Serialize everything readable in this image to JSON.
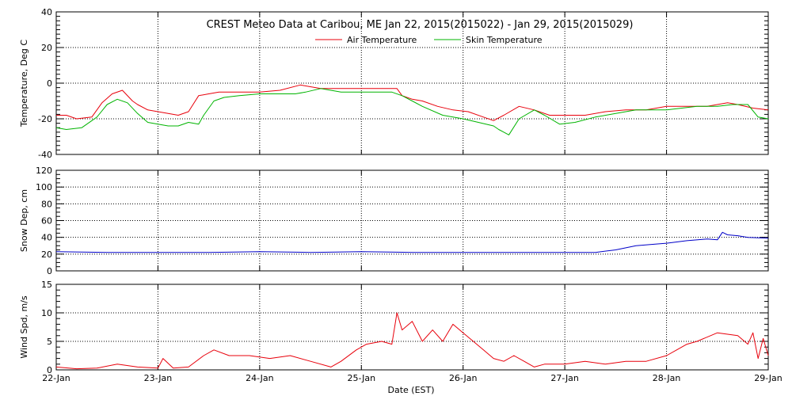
{
  "title": "CREST Meteo Data at Caribou, ME   Jan 22, 2015(2015022) - Jan 29, 2015(2015029)",
  "xlabel": "Date (EST)",
  "x_ticks": [
    "22-Jan",
    "23-Jan",
    "24-Jan",
    "25-Jan",
    "26-Jan",
    "27-Jan",
    "28-Jan",
    "29-Jan"
  ],
  "colors": {
    "air": "#e8000b",
    "skin": "#00b400",
    "snow": "#0000c8",
    "wind": "#e8000b",
    "grid": "#000000"
  },
  "chart_data": [
    {
      "type": "line",
      "title": "CREST Meteo Data at Caribou, ME   Jan 22, 2015(2015022) - Jan 29, 2015(2015029)",
      "xlabel": "",
      "ylabel": "Temperature, Deg C",
      "xlim": [
        0,
        7
      ],
      "ylim": [
        -40,
        40
      ],
      "y_ticks": [
        40,
        20,
        0,
        -20,
        -40
      ],
      "grid": true,
      "legend": "top-center",
      "series": [
        {
          "name": "Air Temperature",
          "color": "#e8000b",
          "x": [
            0,
            0.1,
            0.2,
            0.35,
            0.45,
            0.55,
            0.65,
            0.75,
            0.8,
            0.9,
            1.0,
            1.1,
            1.2,
            1.3,
            1.4,
            1.5,
            1.6,
            1.75,
            2.0,
            2.2,
            2.4,
            2.6,
            2.75,
            2.85,
            3.0,
            3.2,
            3.35,
            3.4,
            3.5,
            3.6,
            3.75,
            3.9,
            4.05,
            4.2,
            4.3,
            4.4,
            4.55,
            4.7,
            4.85,
            5.0,
            5.2,
            5.4,
            5.6,
            5.8,
            6.0,
            6.2,
            6.4,
            6.6,
            6.7,
            6.85,
            7.0
          ],
          "y": [
            -18,
            -18,
            -20,
            -19,
            -11,
            -6,
            -4,
            -10,
            -12,
            -15,
            -16,
            -17,
            -18,
            -16,
            -7,
            -6,
            -5,
            -5,
            -5,
            -4,
            -1,
            -3,
            -3,
            -3,
            -3,
            -3,
            -3,
            -7,
            -9,
            -10,
            -13,
            -15,
            -16,
            -19,
            -21,
            -18,
            -13,
            -15,
            -18,
            -18,
            -18,
            -16,
            -15,
            -15,
            -13,
            -13,
            -13,
            -11,
            -12,
            -14,
            -15
          ]
        },
        {
          "name": "Skin Temperature",
          "color": "#00b400",
          "x": [
            0,
            0.1,
            0.25,
            0.4,
            0.5,
            0.6,
            0.7,
            0.8,
            0.9,
            1.0,
            1.1,
            1.2,
            1.3,
            1.4,
            1.45,
            1.55,
            1.65,
            1.8,
            2.0,
            2.2,
            2.35,
            2.45,
            2.6,
            2.8,
            3.0,
            3.3,
            3.4,
            3.5,
            3.6,
            3.8,
            4.0,
            4.15,
            4.3,
            4.35,
            4.45,
            4.55,
            4.7,
            4.8,
            4.95,
            5.1,
            5.3,
            5.5,
            5.7,
            6.0,
            6.3,
            6.5,
            6.65,
            6.8,
            6.9,
            7.0
          ],
          "y": [
            -25,
            -26,
            -25,
            -19,
            -12,
            -9,
            -11,
            -17,
            -22,
            -23,
            -24,
            -24,
            -22,
            -23,
            -18,
            -10,
            -8,
            -7,
            -6,
            -6,
            -6,
            -5,
            -3,
            -5,
            -5,
            -5,
            -7,
            -10,
            -13,
            -18,
            -20,
            -22,
            -24,
            -26,
            -29,
            -20,
            -15,
            -18,
            -23,
            -22,
            -19,
            -17,
            -15,
            -15,
            -13,
            -13,
            -12,
            -12,
            -19,
            -20
          ]
        }
      ]
    },
    {
      "type": "line",
      "title": "",
      "xlabel": "",
      "ylabel": "Snow Dep, cm",
      "xlim": [
        0,
        7
      ],
      "ylim": [
        0,
        120
      ],
      "y_ticks": [
        120,
        100,
        80,
        60,
        40,
        20,
        0
      ],
      "grid": true,
      "series": [
        {
          "name": "",
          "color": "#0000c8",
          "x": [
            0,
            0.5,
            1.0,
            1.5,
            2.0,
            2.5,
            3.0,
            3.5,
            4.0,
            4.5,
            5.0,
            5.3,
            5.5,
            5.7,
            5.9,
            6.0,
            6.2,
            6.4,
            6.5,
            6.55,
            6.6,
            6.7,
            6.8,
            7.0
          ],
          "y": [
            23,
            22,
            22,
            22,
            23,
            22,
            23,
            22,
            22,
            22,
            22,
            22,
            25,
            30,
            32,
            33,
            36,
            38,
            37,
            46,
            43,
            42,
            40,
            39
          ]
        }
      ]
    },
    {
      "type": "line",
      "title": "",
      "xlabel": "Date (EST)",
      "ylabel": "Wind Spd, m/s",
      "xlim": [
        0,
        7
      ],
      "ylim": [
        0,
        15
      ],
      "y_ticks": [
        15,
        10,
        5,
        0
      ],
      "grid": true,
      "series": [
        {
          "name": "",
          "color": "#e8000b",
          "x": [
            0,
            0.2,
            0.4,
            0.6,
            0.8,
            1.0,
            1.05,
            1.15,
            1.3,
            1.45,
            1.55,
            1.7,
            1.9,
            2.1,
            2.3,
            2.5,
            2.7,
            2.8,
            2.95,
            3.05,
            3.2,
            3.3,
            3.35,
            3.4,
            3.5,
            3.6,
            3.7,
            3.8,
            3.9,
            4.0,
            4.1,
            4.2,
            4.3,
            4.4,
            4.5,
            4.6,
            4.7,
            4.8,
            5.0,
            5.2,
            5.4,
            5.6,
            5.8,
            6.0,
            6.1,
            6.2,
            6.3,
            6.5,
            6.7,
            6.8,
            6.85,
            6.9,
            6.95,
            7.0
          ],
          "y": [
            0.5,
            0.2,
            0.3,
            1.0,
            0.5,
            0.3,
            2.0,
            0.3,
            0.5,
            2.5,
            3.5,
            2.5,
            2.5,
            2.0,
            2.5,
            1.5,
            0.5,
            1.5,
            3.5,
            4.5,
            5.0,
            4.5,
            10.0,
            7.0,
            8.5,
            5.0,
            7.0,
            5.0,
            8.0,
            6.5,
            5.0,
            3.5,
            2.0,
            1.5,
            2.5,
            1.5,
            0.5,
            1.0,
            1.0,
            1.5,
            1.0,
            1.5,
            1.5,
            2.5,
            3.5,
            4.5,
            5.0,
            6.5,
            6.0,
            4.5,
            6.5,
            2.0,
            5.5,
            2.5
          ]
        }
      ]
    }
  ]
}
